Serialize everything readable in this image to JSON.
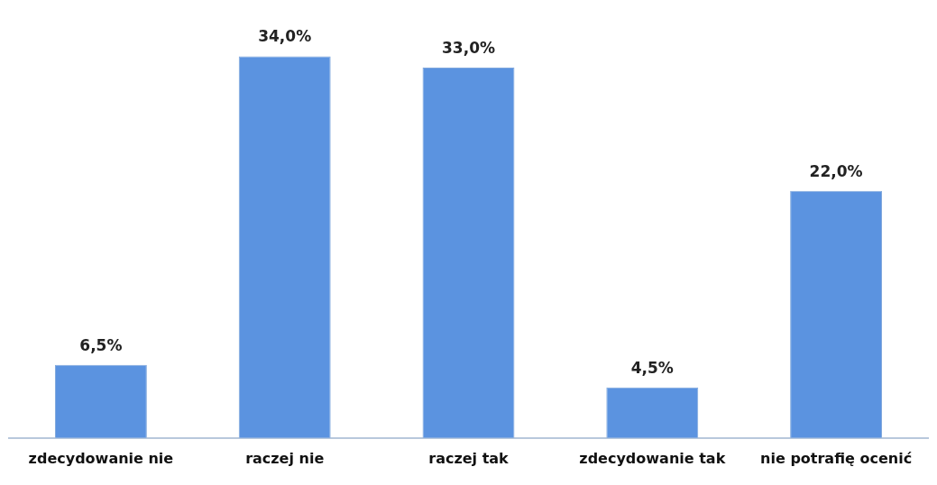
{
  "chart_data": {
    "type": "bar",
    "categories": [
      "zdecydowanie nie",
      "raczej nie",
      "raczej tak",
      "zdecydowanie tak",
      "nie potrafię ocenić"
    ],
    "values": [
      6.5,
      34.0,
      33.0,
      4.5,
      22.0
    ],
    "value_labels": [
      "6,5%",
      "34,0%",
      "33,0%",
      "4,5%",
      "22,0%"
    ],
    "color": "#5b93e0",
    "grid": false,
    "legend": false
  }
}
